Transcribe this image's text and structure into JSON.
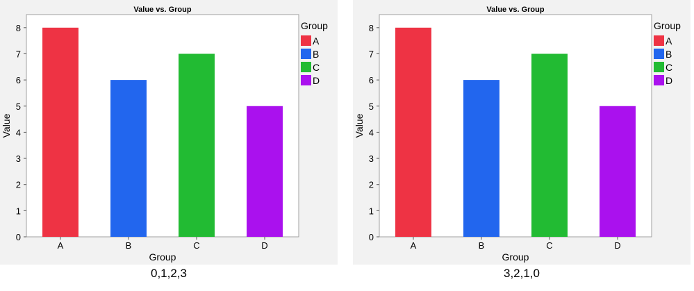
{
  "chart_data": [
    {
      "type": "bar",
      "title": "Value vs. Group",
      "xlabel": "Group",
      "ylabel": "Value",
      "categories": [
        "A",
        "B",
        "C",
        "D"
      ],
      "values": [
        8,
        6,
        7,
        5
      ],
      "ylim": [
        0,
        8.5
      ],
      "yticks": [
        "0",
        "1",
        "2",
        "3",
        "4",
        "5",
        "6",
        "7",
        "8"
      ],
      "colors": [
        "#ee3344",
        "#2266ee",
        "#22bb33",
        "#aa11ee"
      ],
      "legend": {
        "title": "Group",
        "entries": [
          "A",
          "B",
          "C",
          "D"
        ],
        "placement": "right"
      },
      "grid": false,
      "caption": "0,1,2,3"
    },
    {
      "type": "bar",
      "title": "Value vs. Group",
      "xlabel": "Group",
      "ylabel": "Value",
      "categories": [
        "A",
        "B",
        "C",
        "D"
      ],
      "values": [
        8,
        6,
        7,
        5
      ],
      "ylim": [
        0,
        8.5
      ],
      "yticks": [
        "0",
        "1",
        "2",
        "3",
        "4",
        "5",
        "6",
        "7",
        "8"
      ],
      "colors": [
        "#ee3344",
        "#2266ee",
        "#22bb33",
        "#aa11ee"
      ],
      "legend": {
        "title": "Group",
        "entries": [
          "A",
          "B",
          "C",
          "D"
        ],
        "placement": "right"
      },
      "grid": false,
      "caption": "3,2,1,0"
    }
  ]
}
